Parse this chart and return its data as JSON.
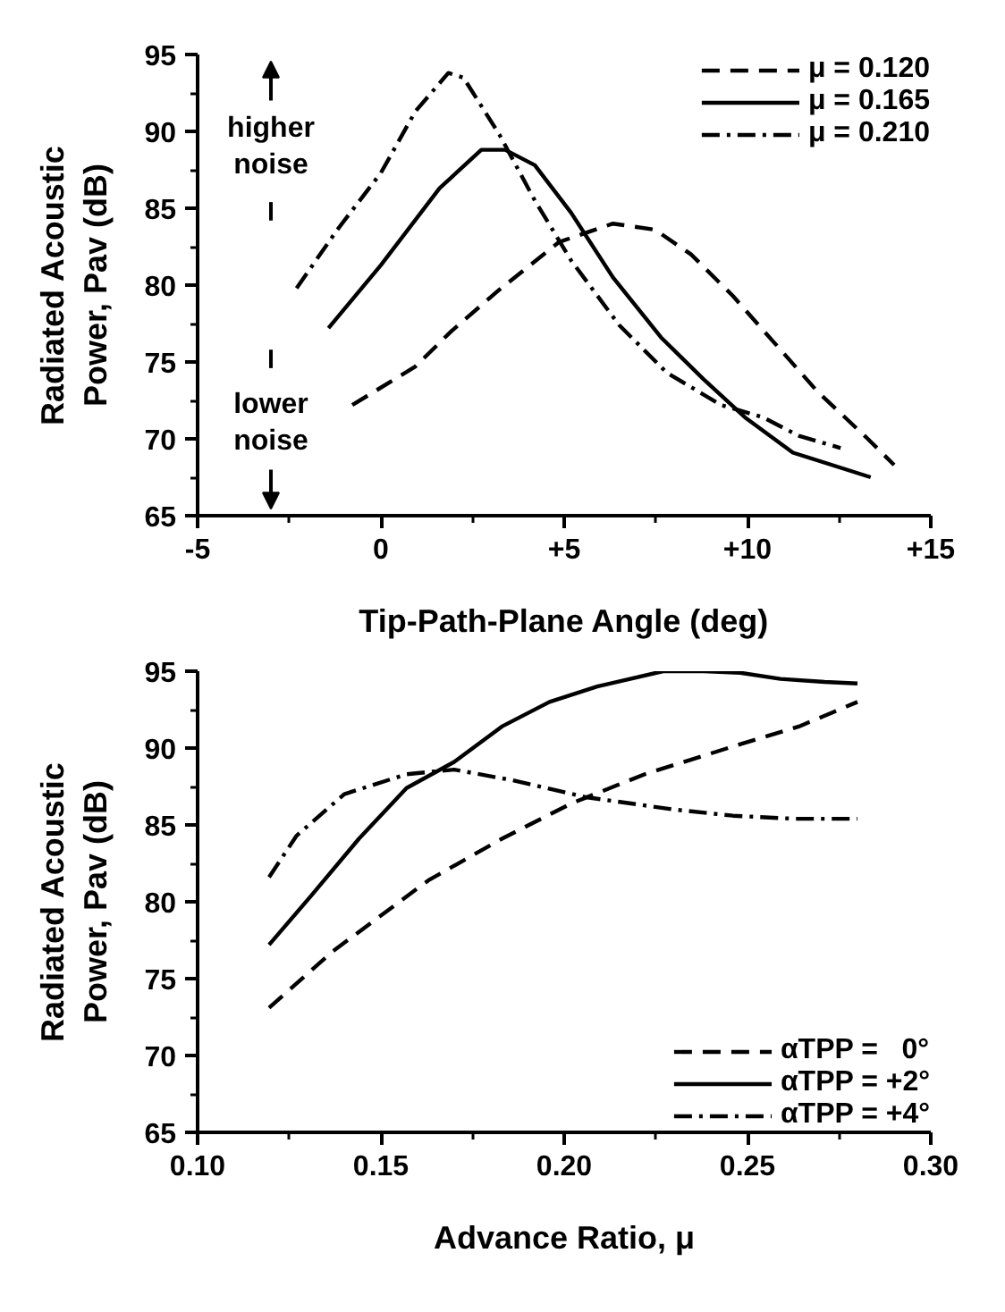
{
  "chart_data": [
    {
      "type": "line",
      "xlabel": "Tip-Path-Plane Angle (deg)",
      "ylabel": "Radiated Acoustic\nPower, Pav (dB)",
      "xlim": [
        -5,
        15
      ],
      "xticks": [
        -5,
        0,
        {
          "value": 5,
          "label": "+5"
        },
        {
          "value": 10,
          "label": "+10"
        },
        {
          "value": 15,
          "label": "+15"
        }
      ],
      "ylim": [
        65,
        95
      ],
      "yticks": [
        65,
        70,
        75,
        80,
        85,
        90,
        95
      ],
      "grid": false,
      "legend": "top right",
      "marker": "none",
      "annotations": [
        "higher noise",
        "lower noise"
      ],
      "series": [
        {
          "name": "μ = 0.120",
          "color": "#000000",
          "line_style": "dashed",
          "x": [
            -0.78,
            0.94,
            1.92,
            3.23,
            4.86,
            6.33,
            7.48,
            8.46,
            9.6,
            10.75,
            11.9,
            13.28,
            14.0
          ],
          "values": [
            72.2,
            74.7,
            77.0,
            79.7,
            82.8,
            84.0,
            83.6,
            82.0,
            79.3,
            76.2,
            73.1,
            70.0,
            68.3
          ]
        },
        {
          "name": "μ = 0.165",
          "color": "#000000",
          "line_style": "solid",
          "x": [
            -1.43,
            0.0,
            1.6,
            2.74,
            3.39,
            4.2,
            5.19,
            6.33,
            7.64,
            8.79,
            9.93,
            11.24,
            13.36
          ],
          "values": [
            77.2,
            81.3,
            86.3,
            88.8,
            88.8,
            87.8,
            84.7,
            80.5,
            76.6,
            73.9,
            71.4,
            69.1,
            67.5
          ]
        },
        {
          "name": "μ = 0.210",
          "color": "#000000",
          "line_style": "dashdot",
          "x": [
            -2.3,
            -1.19,
            0.0,
            0.94,
            1.84,
            2.25,
            3.23,
            4.2,
            5.19,
            6.5,
            7.8,
            9.28,
            10.42,
            11.4,
            12.54
          ],
          "values": [
            79.8,
            83.6,
            87.3,
            91.3,
            93.8,
            93.5,
            89.8,
            85.5,
            81.6,
            77.4,
            74.3,
            72.2,
            71.4,
            70.2,
            69.4
          ]
        }
      ]
    },
    {
      "type": "line",
      "xlabel": "Advance Ratio, μ",
      "ylabel": "Radiated Acoustic\nPower, Pav (dB)",
      "xlim": [
        0.1,
        0.3
      ],
      "xticks": [
        {
          "value": 0.1,
          "label": "0.10"
        },
        0.15,
        {
          "value": 0.2,
          "label": "0.20"
        },
        0.25,
        {
          "value": 0.3,
          "label": "0.30"
        }
      ],
      "ylim": [
        65,
        95
      ],
      "yticks": [
        65,
        70,
        75,
        80,
        85,
        90,
        95
      ],
      "grid": false,
      "legend": "bottom right",
      "marker": "none",
      "series": [
        {
          "name": "αTPP =   0°",
          "color": "#000000",
          "line_style": "dashed",
          "x": [
            0.1195,
            0.137,
            0.163,
            0.183,
            0.202,
            0.222,
            0.246,
            0.264,
            0.28
          ],
          "values": [
            73.1,
            76.8,
            81.4,
            84.1,
            86.4,
            88.3,
            90.1,
            91.4,
            93.0
          ]
        },
        {
          "name": "αTPP = +2°",
          "color": "#000000",
          "line_style": "solid",
          "x": [
            0.1195,
            0.131,
            0.144,
            0.157,
            0.17,
            0.183,
            0.196,
            0.209,
            0.227,
            0.238,
            0.248,
            0.259,
            0.271,
            0.28
          ],
          "values": [
            77.2,
            80.4,
            84.1,
            87.4,
            89.1,
            91.4,
            93.0,
            94.0,
            95.0,
            95.0,
            94.9,
            94.5,
            94.3,
            94.2
          ]
        },
        {
          "name": "αTPP = +4°",
          "color": "#000000",
          "line_style": "dashdot",
          "x": [
            0.1195,
            0.127,
            0.14,
            0.157,
            0.17,
            0.186,
            0.206,
            0.23,
            0.246,
            0.263,
            0.28
          ],
          "values": [
            81.6,
            84.3,
            87.0,
            88.3,
            88.6,
            87.9,
            86.8,
            86.0,
            85.6,
            85.4,
            85.4
          ]
        }
      ]
    }
  ]
}
